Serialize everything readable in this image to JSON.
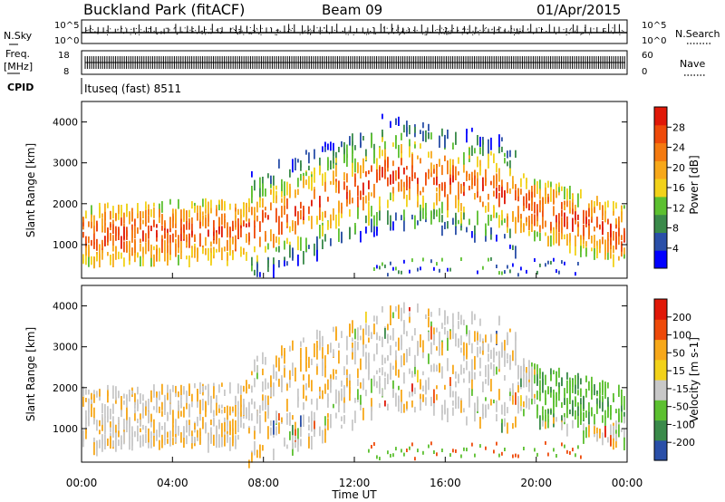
{
  "header": {
    "station": "Buckland Park (fitACF)",
    "beam": "Beam 09",
    "date": "01/Apr/2015"
  },
  "noise_panel": {
    "left_label": "N.Sky",
    "right_label": "N.Search",
    "left_ticks": [
      "10^5",
      "10^0"
    ],
    "right_ticks": [
      "10^5",
      "10^0"
    ]
  },
  "freq_panel": {
    "left_label_1": "Freq.",
    "left_label_2": "[MHz]",
    "right_label": "Nave",
    "left_ticks": [
      "18",
      "8"
    ],
    "right_ticks": [
      "60",
      "0"
    ]
  },
  "cpid": {
    "label": "CPID",
    "value": "Ituseq (fast) 8511"
  },
  "colors": {
    "power": [
      "#0000ff",
      "#2a4fa8",
      "#3a8a4a",
      "#5cc030",
      "#f2d21a",
      "#f7a81a",
      "#f47a10",
      "#ee4a0a",
      "#e01808"
    ],
    "velocity": [
      "#e01808",
      "#ee4a0a",
      "#f7a81a",
      "#f2d21a",
      "#c8c8c8",
      "#5cc030",
      "#3a8a4a",
      "#2a4fa8"
    ]
  },
  "chart_data": [
    {
      "type": "heatmap",
      "name": "power",
      "ylabel": "Slant Range [km]",
      "ylim": [
        180,
        4500
      ],
      "y_ticks": [
        "1000",
        "2000",
        "3000",
        "4000"
      ],
      "x_ticks": [
        "00:00",
        "04:00",
        "08:00",
        "12:00",
        "16:00",
        "20:00",
        "00:00"
      ],
      "colorbar": {
        "label": "Power [dB]",
        "ticks": [
          "4",
          "8",
          "12",
          "16",
          "20",
          "24",
          "28"
        ]
      }
    },
    {
      "type": "heatmap",
      "name": "velocity",
      "ylabel": "Slant Range [km]",
      "ylim": [
        180,
        4500
      ],
      "y_ticks": [
        "1000",
        "2000",
        "3000",
        "4000"
      ],
      "x_ticks": [
        "00:00",
        "04:00",
        "08:00",
        "12:00",
        "16:00",
        "20:00",
        "00:00"
      ],
      "xlabel": "Time UT",
      "colorbar": {
        "label": "Velocity [m s-1]",
        "ticks": [
          "200",
          "100",
          "50",
          "15",
          "-15",
          "-50",
          "-100",
          "-200"
        ]
      }
    }
  ]
}
